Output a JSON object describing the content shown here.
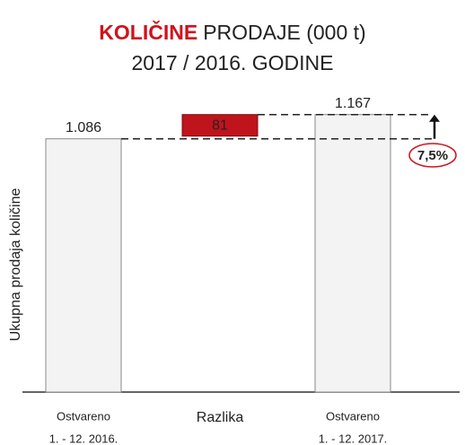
{
  "chart_data": {
    "type": "waterfall",
    "title": {
      "highlight": "KOLIČINE",
      "rest": "PRODAJE (000 t)",
      "line2": "2017 / 2016. GODINE"
    },
    "ylabel": "Ukupna prodaja količine",
    "categories": [
      [
        "Ostvareno",
        "1. - 12. 2016."
      ],
      [
        "Razlika"
      ],
      [
        "Ostvareno",
        "1. - 12. 2017."
      ]
    ],
    "values": [
      1086,
      81,
      1167
    ],
    "value_labels": [
      "1.086",
      "81",
      "1.167"
    ],
    "totals": [
      true,
      false,
      true
    ],
    "colors": {
      "total": "#f3f3f3",
      "increase": "#c0141c"
    },
    "annotation": "7,5%",
    "ylim": [
      240,
      1250
    ]
  }
}
